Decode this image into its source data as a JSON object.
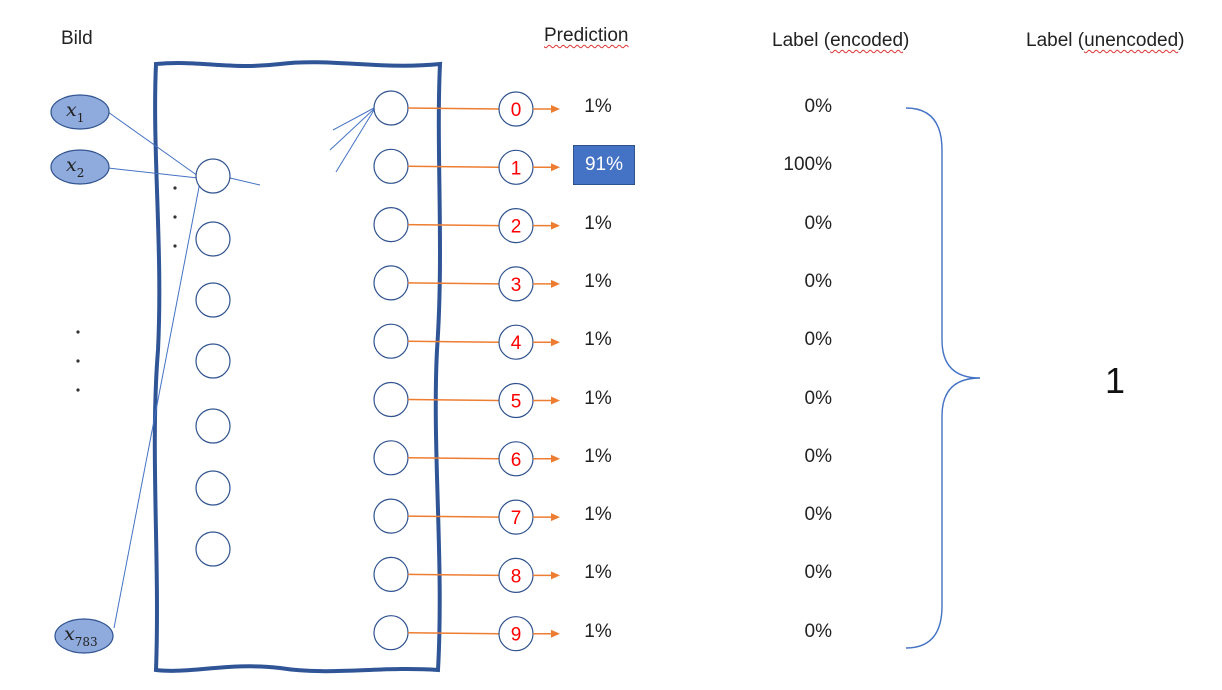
{
  "headers": {
    "image": "Bild",
    "prediction": "Prediction",
    "label_encoded_pre": "Label (",
    "label_encoded_word": "encoded",
    "label_encoded_post": ")",
    "label_unencoded_pre": "Label (",
    "label_unencoded_word": "unencoded",
    "label_unencoded_post": ")"
  },
  "inputs": [
    {
      "var": "x",
      "sub": "1"
    },
    {
      "var": "x",
      "sub": "2"
    },
    {
      "var": "x",
      "sub": "783"
    }
  ],
  "outputs": [
    "0",
    "1",
    "2",
    "3",
    "4",
    "5",
    "6",
    "7",
    "8",
    "9"
  ],
  "predictions": [
    "1%",
    "91%",
    "1%",
    "1%",
    "1%",
    "1%",
    "1%",
    "1%",
    "1%",
    "1%"
  ],
  "highlighted_index": 1,
  "encoded_labels": [
    "0%",
    "100%",
    "0%",
    "0%",
    "0%",
    "0%",
    "0%",
    "0%",
    "0%",
    "0%"
  ],
  "unencoded_label": "1",
  "colors": {
    "input_fill": "#8faadc",
    "input_stroke": "#2f528f",
    "network_border": "#2f5597",
    "neuron_stroke": "#2f528f",
    "arrow": "#ed7d31",
    "digit": "#ff0000",
    "highlight": "#4472c4",
    "brace": "#4472c4"
  }
}
